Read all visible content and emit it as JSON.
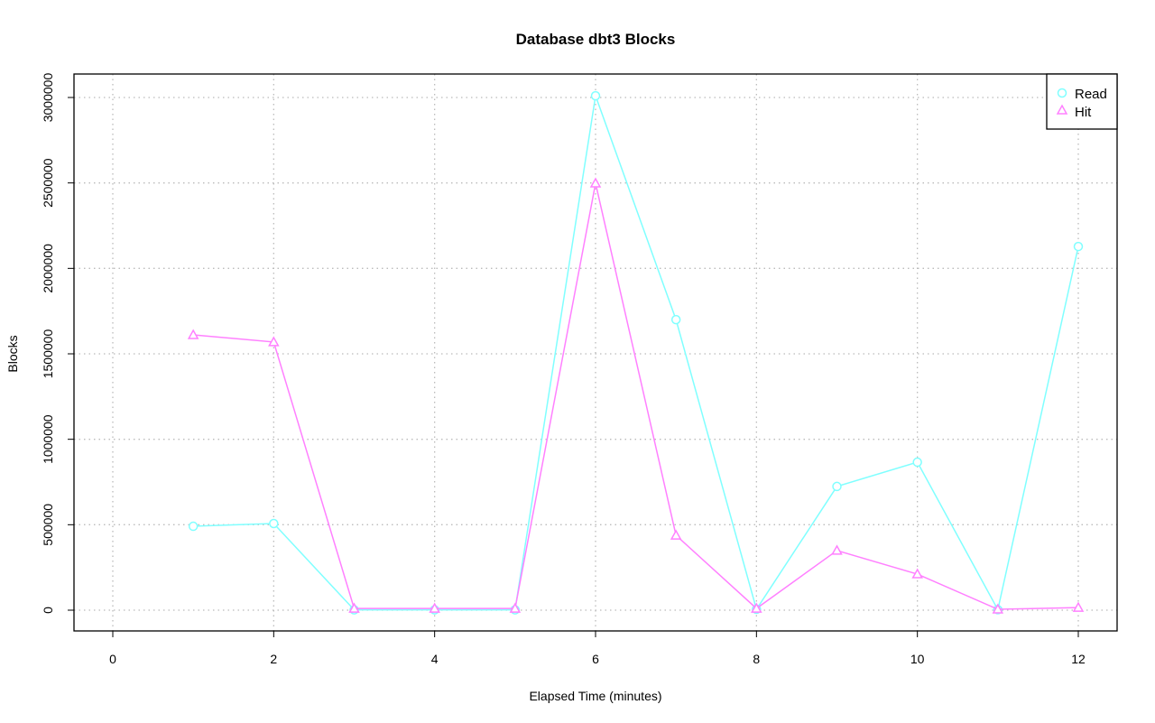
{
  "chart_data": {
    "type": "line",
    "title": "Database dbt3 Blocks",
    "xlabel": "Elapsed Time (minutes)",
    "ylabel": "Blocks",
    "xlim": [
      0,
      12
    ],
    "ylim": [
      0,
      3000000
    ],
    "x_ticks": [
      0,
      2,
      4,
      6,
      8,
      10,
      12
    ],
    "y_ticks": [
      0,
      500000,
      1000000,
      1500000,
      2000000,
      2500000,
      3000000
    ],
    "grid": true,
    "legend_position": "top-right",
    "x": [
      1,
      2,
      3,
      4,
      5,
      6,
      7,
      8,
      9,
      10,
      11,
      12
    ],
    "series": [
      {
        "name": "Read",
        "color": "#80ffff",
        "marker": "circle",
        "values": [
          491000,
          507000,
          2000,
          2000,
          2000,
          3010000,
          1700000,
          5000,
          724000,
          866000,
          3000,
          2128000
        ]
      },
      {
        "name": "Hit",
        "color": "#ff80ff",
        "marker": "triangle",
        "values": [
          1611000,
          1569000,
          10000,
          10000,
          10000,
          2498000,
          438000,
          10000,
          349000,
          211000,
          5000,
          15000
        ]
      }
    ]
  }
}
